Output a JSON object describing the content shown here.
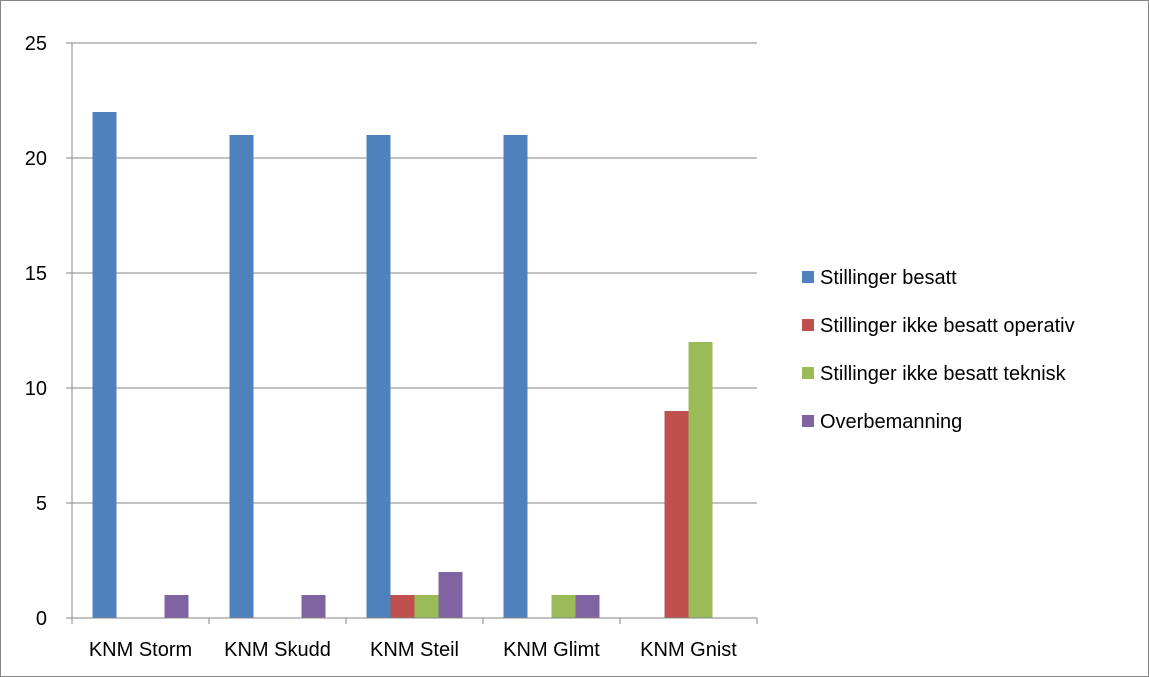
{
  "chart_data": {
    "type": "bar",
    "title": "",
    "xlabel": "",
    "ylabel": "",
    "ylim": [
      0,
      25
    ],
    "yticks": [
      0,
      5,
      10,
      15,
      20,
      25
    ],
    "grid": true,
    "legend_position": "right",
    "categories": [
      "KNM Storm",
      "KNM Skudd",
      "KNM Steil",
      "KNM Glimt",
      "KNM Gnist"
    ],
    "series": [
      {
        "name": "Stillinger besatt",
        "color": "#4F81BD",
        "values": [
          22,
          21,
          21,
          21,
          0
        ]
      },
      {
        "name": "Stillinger ikke besatt operativ",
        "color": "#C0504D",
        "values": [
          0,
          0,
          1,
          0,
          9
        ]
      },
      {
        "name": "Stillinger ikke besatt teknisk",
        "color": "#9BBB59",
        "values": [
          0,
          0,
          1,
          1,
          12
        ]
      },
      {
        "name": "Overbemanning",
        "color": "#8064A2",
        "values": [
          1,
          1,
          2,
          1,
          0
        ]
      }
    ]
  }
}
